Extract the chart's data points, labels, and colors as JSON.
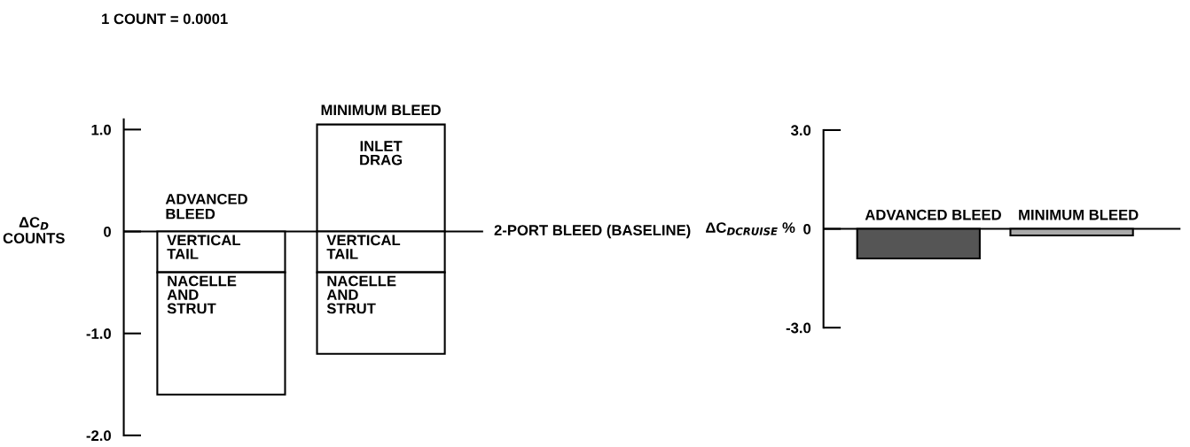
{
  "chart_data": [
    {
      "type": "bar",
      "stacked": true,
      "categories": [
        "ADVANCED BLEED",
        "MINIMUM BLEED"
      ],
      "ylabel": "ΔC$_{D}$\nCOUNTS",
      "ylim": [
        -2.0,
        1.1
      ],
      "yticks": [
        {
          "value": 1.0,
          "label": "1.0"
        },
        0,
        {
          "value": -1.0,
          "label": "-1.0"
        },
        {
          "value": -2.0,
          "label": "-2.0"
        }
      ],
      "tick_labels": "y",
      "series": [
        {
          "name": "INLET DRAG",
          "color": "#ffffff",
          "values": [
            null,
            1.05
          ]
        },
        {
          "name": "VERTICAL TAIL",
          "color": "#ffffff",
          "values": [
            -0.4,
            -0.4
          ]
        },
        {
          "name": "NACELLE AND STRUT",
          "color": "#ffffff",
          "values": [
            -1.2,
            -0.8
          ]
        }
      ],
      "ref_lines": [
        {
          "axis": "y",
          "value": 0,
          "label": "2-PORT BLEED (BASELINE)"
        }
      ],
      "annotations": [
        "1 COUNT = 0.0001"
      ]
    },
    {
      "type": "bar",
      "categories": [
        "ADVANCED BLEED",
        "MINIMUM BLEED"
      ],
      "ylabel": "ΔC$_{DCRUISE}$ %",
      "ylim": [
        -3.0,
        3.0
      ],
      "yticks": [
        {
          "value": 3.0,
          "label": "3.0"
        },
        0,
        {
          "value": -3.0,
          "label": "-3.0"
        }
      ],
      "tick_labels": "y",
      "values": [
        -0.9,
        -0.2
      ],
      "colors": [
        "#555555",
        "#aaaaaa"
      ],
      "ref_lines": [
        {
          "axis": "y",
          "value": 0
        }
      ]
    }
  ]
}
